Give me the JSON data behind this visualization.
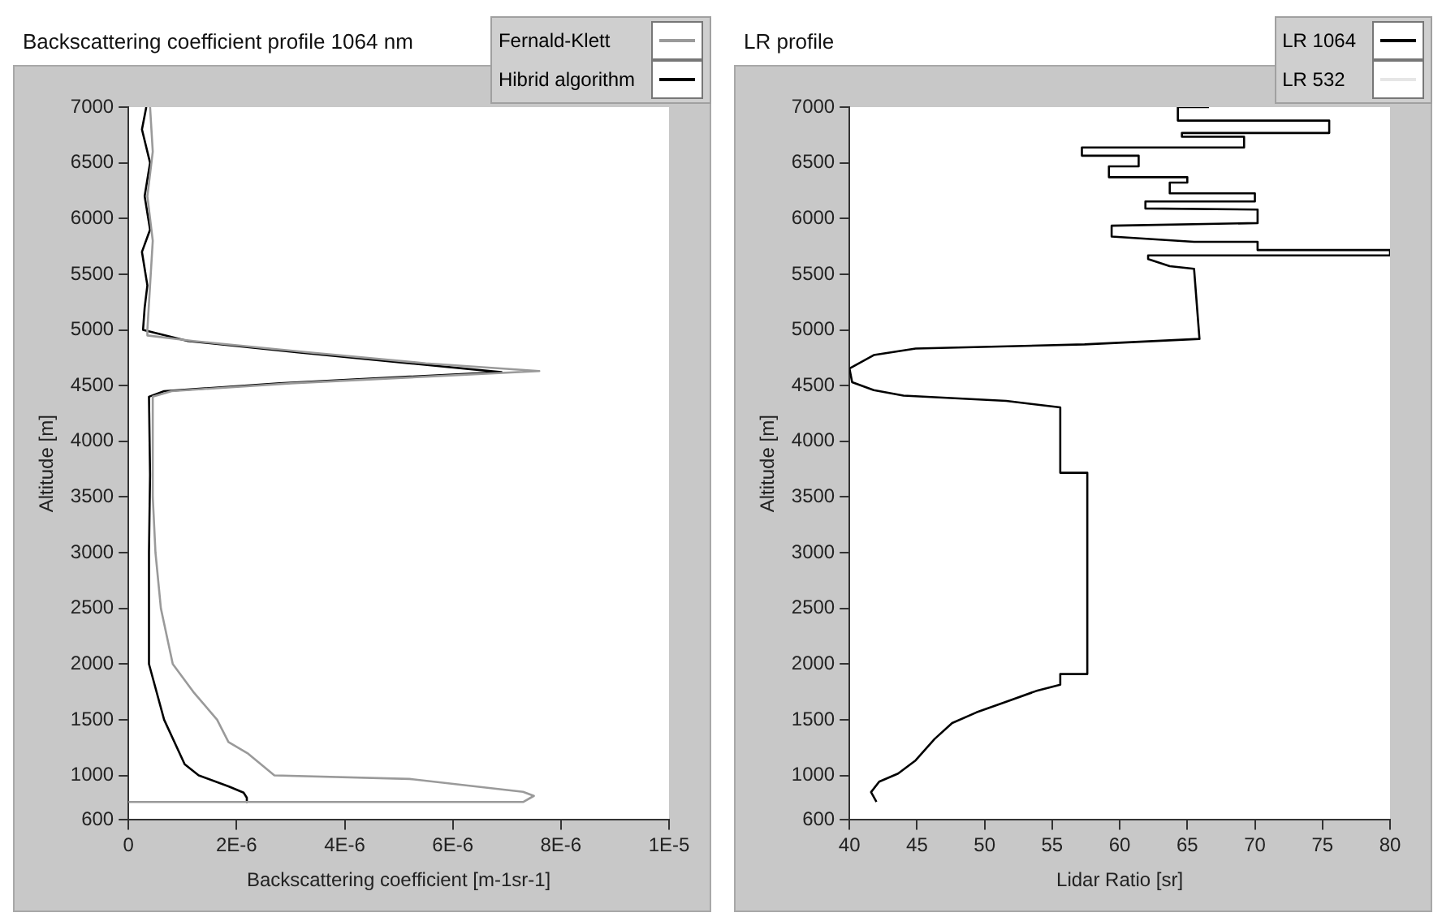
{
  "chart_data": [
    {
      "type": "line",
      "title": "Backscattering coefficient profile 1064 nm",
      "xlabel": "Backscattering coefficient [m-1sr-1]",
      "ylabel": "Altitude [m]",
      "xlim": [
        0,
        1e-05
      ],
      "xticks": [
        0,
        {
          "value": 2e-06,
          "label": "2E-6"
        },
        {
          "value": 4e-06,
          "label": "4E-6"
        },
        {
          "value": 6e-06,
          "label": "6E-6"
        },
        {
          "value": 8e-06,
          "label": "8E-6"
        },
        {
          "value": 1e-05,
          "label": "1E-5"
        }
      ],
      "ylim": [
        600,
        7000
      ],
      "yticks": [
        600,
        1000,
        1500,
        2000,
        2500,
        3000,
        3500,
        4000,
        4500,
        5000,
        5500,
        6000,
        6500,
        7000
      ],
      "legend": "top right",
      "marker": "none",
      "series": [
        {
          "name": "Fernald-Klett",
          "color": "#9a9a9a",
          "x": [
            4e-07,
            4.5e-07,
            3.5e-07,
            4.5e-07,
            4e-07,
            3.5e-07,
            3.5e-07,
            1.2e-06,
            3.3e-06,
            5.5e-06,
            7.6e-06,
            5.5e-06,
            3e-06,
            8e-07,
            4.5e-07,
            4.5e-07,
            5e-07,
            6e-07,
            8.2e-07,
            1.2e-06,
            1.64e-06,
            1.85e-06,
            2.2e-06,
            2.7e-06,
            5.2e-06,
            7.3e-06,
            7.5e-06,
            7.3e-06,
            0
          ],
          "values": [
            7000,
            6600,
            6200,
            5800,
            5400,
            5000,
            4950,
            4900,
            4800,
            4700,
            4630,
            4580,
            4520,
            4450,
            4400,
            3500,
            3000,
            2500,
            2000,
            1750,
            1500,
            1300,
            1200,
            1000,
            968,
            853,
            816,
            761,
            761
          ]
        },
        {
          "name": "Hibrid algorithm",
          "color": "#000000",
          "x": [
            3.3e-07,
            2.5e-07,
            4e-07,
            3e-07,
            4e-07,
            2.5e-07,
            3.5e-07,
            3e-07,
            2.7e-07,
            1.1e-06,
            3.1e-06,
            5.2e-06,
            6.9e-06,
            5.2e-06,
            2.8e-06,
            6.6e-07,
            3.8e-07,
            4e-07,
            3.8e-07,
            3.8e-07,
            6.6e-07,
            1.04e-06,
            1.3e-06,
            1.86e-06,
            2.13e-06,
            2.19e-06,
            2.19e-06
          ],
          "values": [
            7000,
            6800,
            6500,
            6200,
            5900,
            5700,
            5400,
            5200,
            5000,
            4900,
            4800,
            4700,
            4620,
            4580,
            4520,
            4450,
            4400,
            3700,
            3000,
            2000,
            1500,
            1100,
            1000,
            900,
            845,
            800,
            761
          ]
        }
      ]
    },
    {
      "type": "line",
      "title": "LR profile",
      "xlabel": "Lidar Ratio [sr]",
      "ylabel": "Altitude [m]",
      "xlim": [
        40,
        80
      ],
      "xticks": [
        40,
        45,
        50,
        55,
        60,
        65,
        70,
        75,
        80
      ],
      "ylim": [
        600,
        7000
      ],
      "yticks": [
        600,
        1000,
        1500,
        2000,
        2500,
        3000,
        3500,
        4000,
        4500,
        5000,
        5500,
        6000,
        6500,
        7000
      ],
      "legend": "top right",
      "marker": "none",
      "series": [
        {
          "name": "LR 1064",
          "color": "#000000",
          "x": [
            42.0,
            41.6,
            42.2,
            43.6,
            44.9,
            46.3,
            47.6,
            49.4,
            51.6,
            53.8,
            55.6,
            55.6,
            57.6,
            57.6,
            55.6,
            55.6,
            51.6,
            44.0,
            41.8,
            40.2,
            40.0,
            41.8,
            44.9,
            57.4,
            65.9,
            65.5,
            63.7,
            62.1,
            62.1,
            80.0,
            80.0,
            70.2,
            70.2,
            65.5,
            59.4,
            59.4,
            70.2,
            70.2,
            61.9,
            61.9,
            70.0,
            70.0,
            63.7,
            63.7,
            65.0,
            65.0,
            59.2,
            59.2,
            61.4,
            61.4,
            57.2,
            57.2,
            69.2,
            69.2,
            64.6,
            64.6,
            75.5,
            75.5,
            64.3,
            64.3,
            66.6
          ],
          "values": [
            763,
            850,
            944,
            1016,
            1135,
            1327,
            1470,
            1566,
            1661,
            1757,
            1814,
            1910,
            1910,
            3717,
            3717,
            4304,
            4362,
            4410,
            4459,
            4530,
            4653,
            4774,
            4832,
            4870,
            4919,
            5548,
            5572,
            5635,
            5669,
            5669,
            5717,
            5717,
            5790,
            5790,
            5838,
            5935,
            5959,
            6080,
            6090,
            6153,
            6153,
            6226,
            6226,
            6322,
            6322,
            6371,
            6371,
            6468,
            6468,
            6564,
            6564,
            6637,
            6637,
            6734,
            6734,
            6768,
            6768,
            6879,
            6879,
            7000,
            7000
          ]
        },
        {
          "name": "LR 532",
          "color": "#e6e6e6"
        }
      ]
    }
  ]
}
